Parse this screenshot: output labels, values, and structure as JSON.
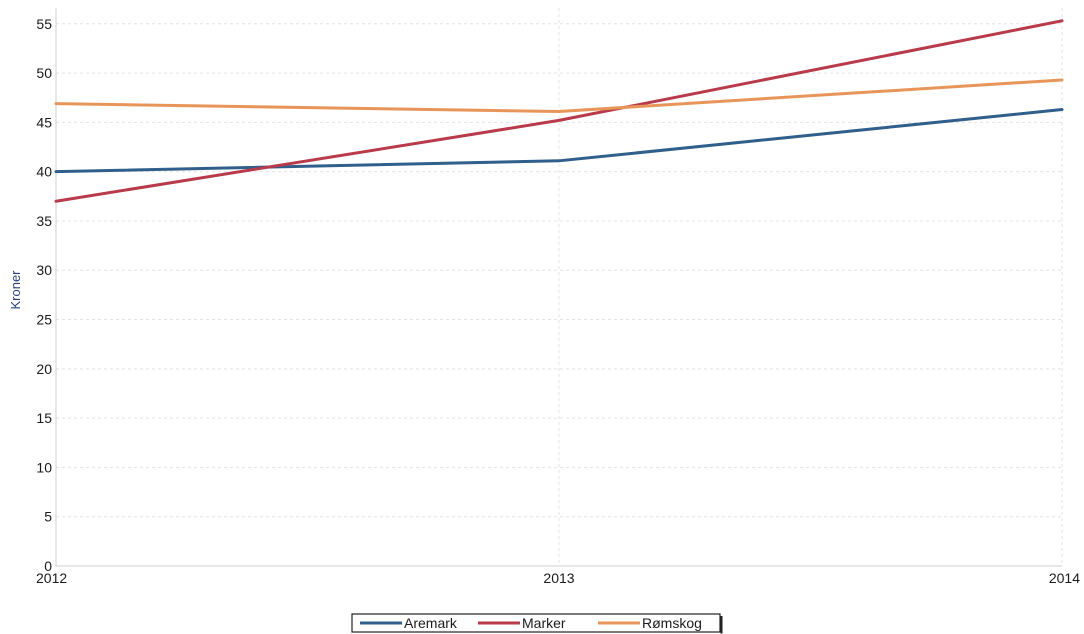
{
  "chart_data": {
    "type": "line",
    "title": "",
    "xlabel": "",
    "ylabel": "Kroner",
    "categories": [
      "2012",
      "2013",
      "2014"
    ],
    "ylim": [
      0,
      55
    ],
    "yticks": [
      0,
      5,
      10,
      15,
      20,
      25,
      30,
      35,
      40,
      45,
      50,
      55
    ],
    "grid": true,
    "legend_position": "bottom",
    "series": [
      {
        "name": "Aremark",
        "values": [
          40,
          41.1,
          46.3
        ],
        "color": "#2f5f8a"
      },
      {
        "name": "Marker",
        "values": [
          37,
          45.2,
          55.3
        ],
        "color": "#b83a4b"
      },
      {
        "name": "Rømskog",
        "values": [
          46.9,
          46.1,
          49.3
        ],
        "color": "#e8955a"
      }
    ]
  }
}
